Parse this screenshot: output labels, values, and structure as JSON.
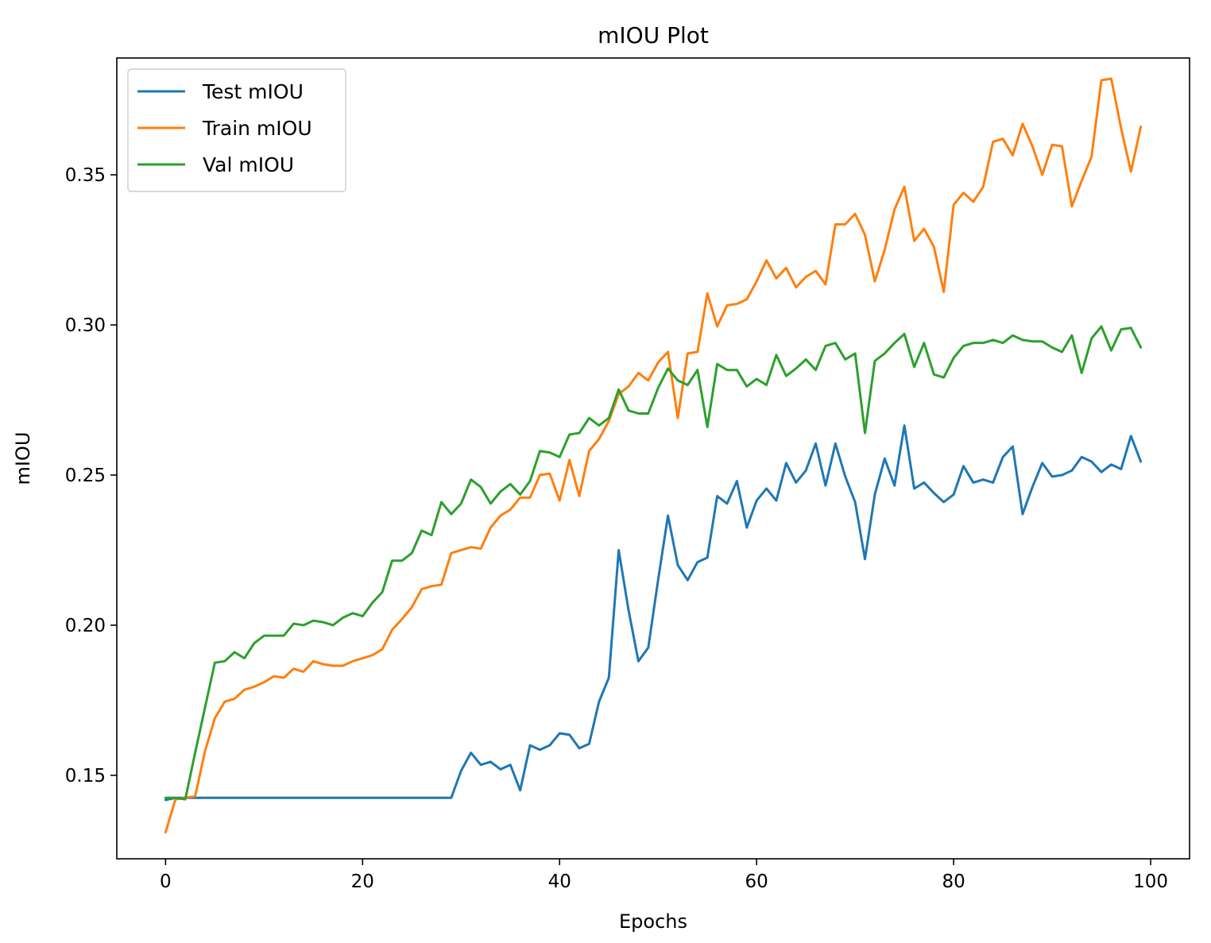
{
  "chart_data": {
    "type": "line",
    "title": "mIOU Plot",
    "xlabel": "Epochs",
    "ylabel": "mIOU",
    "xlim": [
      -4.95,
      103.95
    ],
    "ylim": [
      0.1222,
      0.3889
    ],
    "xticks": [
      0,
      20,
      40,
      60,
      80,
      100
    ],
    "yticks": [
      0.15,
      0.2,
      0.25,
      0.3,
      0.35
    ],
    "xtick_labels": [
      "0",
      "20",
      "40",
      "60",
      "80",
      "100"
    ],
    "ytick_labels": [
      "0.15",
      "0.20",
      "0.25",
      "0.30",
      "0.35"
    ],
    "grid": false,
    "legend_position": "top-left",
    "x": [
      0,
      1,
      2,
      3,
      4,
      5,
      6,
      7,
      8,
      9,
      10,
      11,
      12,
      13,
      14,
      15,
      16,
      17,
      18,
      19,
      20,
      21,
      22,
      23,
      24,
      25,
      26,
      27,
      28,
      29,
      30,
      31,
      32,
      33,
      34,
      35,
      36,
      37,
      38,
      39,
      40,
      41,
      42,
      43,
      44,
      45,
      46,
      47,
      48,
      49,
      50,
      51,
      52,
      53,
      54,
      55,
      56,
      57,
      58,
      59,
      60,
      61,
      62,
      63,
      64,
      65,
      66,
      67,
      68,
      69,
      70,
      71,
      72,
      73,
      74,
      75,
      76,
      77,
      78,
      79,
      80,
      81,
      82,
      83,
      84,
      85,
      86,
      87,
      88,
      89,
      90,
      91,
      92,
      93,
      94,
      95,
      96,
      97,
      98,
      99
    ],
    "series": [
      {
        "name": "Test mIOU",
        "color": "#1f77b4",
        "values": [
          0.1418,
          0.1425,
          0.1425,
          0.1425,
          0.1425,
          0.1425,
          0.1425,
          0.1425,
          0.1425,
          0.1425,
          0.1425,
          0.1425,
          0.1425,
          0.1425,
          0.1425,
          0.1425,
          0.1425,
          0.1425,
          0.1425,
          0.1425,
          0.1425,
          0.1425,
          0.1425,
          0.1425,
          0.1425,
          0.1425,
          0.1425,
          0.1425,
          0.1425,
          0.1425,
          0.1515,
          0.1575,
          0.1535,
          0.1545,
          0.152,
          0.1535,
          0.145,
          0.16,
          0.1585,
          0.16,
          0.164,
          0.1635,
          0.159,
          0.1605,
          0.1745,
          0.1825,
          0.225,
          0.205,
          0.188,
          0.1925,
          0.215,
          0.2365,
          0.22,
          0.215,
          0.221,
          0.2225,
          0.243,
          0.2405,
          0.248,
          0.2325,
          0.2415,
          0.2455,
          0.2415,
          0.254,
          0.2475,
          0.2515,
          0.2605,
          0.2465,
          0.2605,
          0.2495,
          0.241,
          0.222,
          0.2435,
          0.2555,
          0.2465,
          0.2665,
          0.2455,
          0.2475,
          0.244,
          0.241,
          0.2435,
          0.253,
          0.2475,
          0.2485,
          0.2475,
          0.256,
          0.2595,
          0.237,
          0.246,
          0.254,
          0.2495,
          0.25,
          0.2515,
          0.256,
          0.2545,
          0.251,
          0.2535,
          0.252,
          0.263,
          0.2545
        ]
      },
      {
        "name": "Train mIOU",
        "color": "#ff7f0e",
        "values": [
          0.131,
          0.142,
          0.1425,
          0.143,
          0.158,
          0.169,
          0.1745,
          0.1755,
          0.1785,
          0.1795,
          0.181,
          0.183,
          0.1825,
          0.1855,
          0.1845,
          0.188,
          0.187,
          0.1865,
          0.1865,
          0.188,
          0.189,
          0.19,
          0.192,
          0.1985,
          0.202,
          0.206,
          0.212,
          0.213,
          0.2135,
          0.224,
          0.225,
          0.226,
          0.2255,
          0.2325,
          0.2365,
          0.2385,
          0.2425,
          0.2425,
          0.25,
          0.2505,
          0.2415,
          0.255,
          0.243,
          0.258,
          0.262,
          0.268,
          0.277,
          0.2795,
          0.284,
          0.2815,
          0.2875,
          0.291,
          0.269,
          0.2905,
          0.291,
          0.3105,
          0.2995,
          0.3065,
          0.307,
          0.3085,
          0.3145,
          0.3215,
          0.3155,
          0.319,
          0.3125,
          0.316,
          0.318,
          0.3135,
          0.3335,
          0.3335,
          0.337,
          0.33,
          0.3145,
          0.325,
          0.3385,
          0.346,
          0.328,
          0.332,
          0.326,
          0.311,
          0.34,
          0.344,
          0.341,
          0.346,
          0.361,
          0.362,
          0.3565,
          0.367,
          0.3595,
          0.35,
          0.36,
          0.3595,
          0.3395,
          0.348,
          0.356,
          0.3815,
          0.382,
          0.3655,
          0.351,
          0.366
        ]
      },
      {
        "name": "Val mIOU",
        "color": "#2ca02c",
        "values": [
          0.1425,
          0.1425,
          0.142,
          0.1575,
          0.1725,
          0.1875,
          0.188,
          0.191,
          0.189,
          0.194,
          0.1965,
          0.1965,
          0.1965,
          0.2005,
          0.2,
          0.2015,
          0.201,
          0.2,
          0.2025,
          0.204,
          0.203,
          0.2075,
          0.211,
          0.2215,
          0.2215,
          0.224,
          0.2315,
          0.23,
          0.241,
          0.237,
          0.2405,
          0.2485,
          0.246,
          0.2405,
          0.2445,
          0.247,
          0.2435,
          0.248,
          0.258,
          0.2575,
          0.256,
          0.2635,
          0.264,
          0.269,
          0.2665,
          0.269,
          0.2785,
          0.2715,
          0.2705,
          0.2705,
          0.279,
          0.2855,
          0.2815,
          0.28,
          0.285,
          0.266,
          0.287,
          0.285,
          0.285,
          0.2795,
          0.282,
          0.28,
          0.29,
          0.283,
          0.2855,
          0.2885,
          0.285,
          0.293,
          0.294,
          0.2885,
          0.2905,
          0.264,
          0.288,
          0.2905,
          0.294,
          0.297,
          0.286,
          0.294,
          0.2835,
          0.2825,
          0.289,
          0.293,
          0.294,
          0.294,
          0.295,
          0.294,
          0.2965,
          0.295,
          0.2945,
          0.2945,
          0.2925,
          0.291,
          0.2965,
          0.284,
          0.2955,
          0.2995,
          0.2915,
          0.2985,
          0.299,
          0.2925
        ]
      }
    ]
  }
}
